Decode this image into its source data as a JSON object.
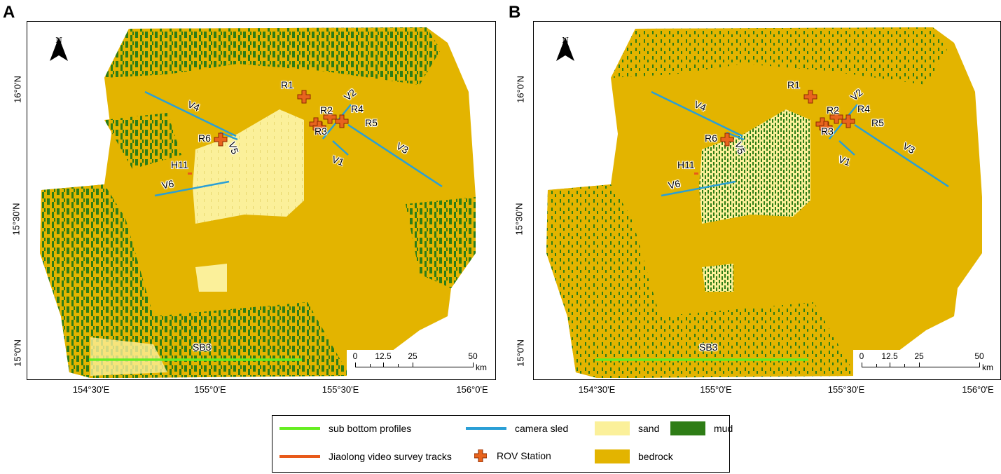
{
  "panels": [
    {
      "letter": "A",
      "north": "N",
      "scale_ticks": [
        "0",
        "12.5",
        "25",
        "50"
      ],
      "scale_unit": "km"
    },
    {
      "letter": "B",
      "north": "N",
      "scale_ticks": [
        "0",
        "12.5",
        "25",
        "50"
      ],
      "scale_unit": "km"
    }
  ],
  "axes": {
    "lat_ticks": [
      "16°0'N",
      "15°30'N",
      "15°0'N"
    ],
    "lon_ticks": [
      "154°30'E",
      "155°0'E",
      "155°30'E",
      "156°0'E"
    ]
  },
  "map_labels": {
    "stations": [
      "R1",
      "R2",
      "R3",
      "R4",
      "R5",
      "R6"
    ],
    "sled_tracks": [
      "V1",
      "V2",
      "V3",
      "V4",
      "V5",
      "V6"
    ],
    "jiaolong_track": "H11",
    "sub_bottom": "SB3"
  },
  "legend": {
    "sub_bottom": "sub bottom profiles",
    "camera_sled": "camera sled",
    "sand": "sand",
    "mud": "mud",
    "jiaolong": "Jiaolong video survey tracks",
    "rov": "ROV Station",
    "bedrock": "bedrock"
  },
  "colors": {
    "bedrock": "#e3b400",
    "sand": "#fbf09a",
    "mud": "#2e7d16",
    "camera_sled": "#2a9fd6",
    "sub_bottom": "#66ee22",
    "jiaolong": "#e85a1a",
    "rov": "#e8641e"
  }
}
